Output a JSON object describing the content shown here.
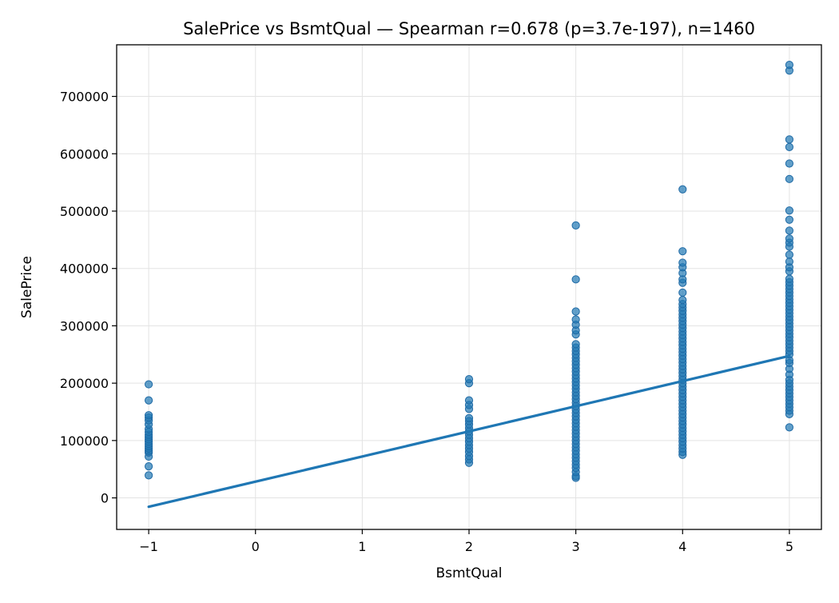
{
  "chart_data": {
    "type": "scatter",
    "title": "SalePrice vs BsmtQual — Spearman r=0.678 (p=3.7e-197), n=1460",
    "xlabel": "BsmtQual",
    "ylabel": "SalePrice",
    "xlim": [
      -1.3,
      5.3
    ],
    "ylim": [
      -55000,
      790000
    ],
    "xticks": [
      -1,
      0,
      1,
      2,
      3,
      4,
      5
    ],
    "xtick_labels": [
      "−1",
      "0",
      "1",
      "2",
      "3",
      "4",
      "5"
    ],
    "yticks": [
      0,
      100000,
      200000,
      300000,
      400000,
      500000,
      600000,
      700000
    ],
    "ytick_labels": [
      "0",
      "100000",
      "200000",
      "300000",
      "400000",
      "500000",
      "600000",
      "700000"
    ],
    "grid": true,
    "colors": {
      "points": "#1f77b4",
      "line": "#1f77b4"
    },
    "point_alpha": 0.7,
    "points": [
      {
        "x": -1,
        "y": 39300
      },
      {
        "x": -1,
        "y": 55000
      },
      {
        "x": -1,
        "y": 72000
      },
      {
        "x": -1,
        "y": 79000
      },
      {
        "x": -1,
        "y": 82000
      },
      {
        "x": -1,
        "y": 86000
      },
      {
        "x": -1,
        "y": 90000
      },
      {
        "x": -1,
        "y": 94000
      },
      {
        "x": -1,
        "y": 98000
      },
      {
        "x": -1,
        "y": 102000
      },
      {
        "x": -1,
        "y": 106000
      },
      {
        "x": -1,
        "y": 110000
      },
      {
        "x": -1,
        "y": 115000
      },
      {
        "x": -1,
        "y": 120000
      },
      {
        "x": -1,
        "y": 128000
      },
      {
        "x": -1,
        "y": 135000
      },
      {
        "x": -1,
        "y": 140000
      },
      {
        "x": -1,
        "y": 144000
      },
      {
        "x": -1,
        "y": 170000
      },
      {
        "x": -1,
        "y": 198000
      },
      {
        "x": 2,
        "y": 61000
      },
      {
        "x": 2,
        "y": 67000
      },
      {
        "x": 2,
        "y": 73000
      },
      {
        "x": 2,
        "y": 80000
      },
      {
        "x": 2,
        "y": 86000
      },
      {
        "x": 2,
        "y": 92000
      },
      {
        "x": 2,
        "y": 98000
      },
      {
        "x": 2,
        "y": 104000
      },
      {
        "x": 2,
        "y": 110000
      },
      {
        "x": 2,
        "y": 116000
      },
      {
        "x": 2,
        "y": 122000
      },
      {
        "x": 2,
        "y": 128000
      },
      {
        "x": 2,
        "y": 134000
      },
      {
        "x": 2,
        "y": 139000
      },
      {
        "x": 2,
        "y": 155000
      },
      {
        "x": 2,
        "y": 162000
      },
      {
        "x": 2,
        "y": 170000
      },
      {
        "x": 2,
        "y": 200000
      },
      {
        "x": 2,
        "y": 207000
      },
      {
        "x": 3,
        "y": 34900
      },
      {
        "x": 3,
        "y": 37900
      },
      {
        "x": 3,
        "y": 45000
      },
      {
        "x": 3,
        "y": 52000
      },
      {
        "x": 3,
        "y": 58000
      },
      {
        "x": 3,
        "y": 64000
      },
      {
        "x": 3,
        "y": 70000
      },
      {
        "x": 3,
        "y": 76000
      },
      {
        "x": 3,
        "y": 82000
      },
      {
        "x": 3,
        "y": 88000
      },
      {
        "x": 3,
        "y": 94000
      },
      {
        "x": 3,
        "y": 100000
      },
      {
        "x": 3,
        "y": 106000
      },
      {
        "x": 3,
        "y": 112000
      },
      {
        "x": 3,
        "y": 118000
      },
      {
        "x": 3,
        "y": 124000
      },
      {
        "x": 3,
        "y": 130000
      },
      {
        "x": 3,
        "y": 136000
      },
      {
        "x": 3,
        "y": 142000
      },
      {
        "x": 3,
        "y": 148000
      },
      {
        "x": 3,
        "y": 154000
      },
      {
        "x": 3,
        "y": 160000
      },
      {
        "x": 3,
        "y": 166000
      },
      {
        "x": 3,
        "y": 172000
      },
      {
        "x": 3,
        "y": 178000
      },
      {
        "x": 3,
        "y": 184000
      },
      {
        "x": 3,
        "y": 190000
      },
      {
        "x": 3,
        "y": 196000
      },
      {
        "x": 3,
        "y": 202000
      },
      {
        "x": 3,
        "y": 208000
      },
      {
        "x": 3,
        "y": 214000
      },
      {
        "x": 3,
        "y": 220000
      },
      {
        "x": 3,
        "y": 226000
      },
      {
        "x": 3,
        "y": 232000
      },
      {
        "x": 3,
        "y": 238000
      },
      {
        "x": 3,
        "y": 244000
      },
      {
        "x": 3,
        "y": 250000
      },
      {
        "x": 3,
        "y": 256000
      },
      {
        "x": 3,
        "y": 262000
      },
      {
        "x": 3,
        "y": 268000
      },
      {
        "x": 3,
        "y": 285000
      },
      {
        "x": 3,
        "y": 292000
      },
      {
        "x": 3,
        "y": 302000
      },
      {
        "x": 3,
        "y": 311000
      },
      {
        "x": 3,
        "y": 325000
      },
      {
        "x": 3,
        "y": 381000
      },
      {
        "x": 3,
        "y": 475000
      },
      {
        "x": 4,
        "y": 75000
      },
      {
        "x": 4,
        "y": 80000
      },
      {
        "x": 4,
        "y": 86000
      },
      {
        "x": 4,
        "y": 92000
      },
      {
        "x": 4,
        "y": 98000
      },
      {
        "x": 4,
        "y": 104000
      },
      {
        "x": 4,
        "y": 110000
      },
      {
        "x": 4,
        "y": 116000
      },
      {
        "x": 4,
        "y": 122000
      },
      {
        "x": 4,
        "y": 128000
      },
      {
        "x": 4,
        "y": 134000
      },
      {
        "x": 4,
        "y": 140000
      },
      {
        "x": 4,
        "y": 146000
      },
      {
        "x": 4,
        "y": 152000
      },
      {
        "x": 4,
        "y": 158000
      },
      {
        "x": 4,
        "y": 164000
      },
      {
        "x": 4,
        "y": 170000
      },
      {
        "x": 4,
        "y": 176000
      },
      {
        "x": 4,
        "y": 182000
      },
      {
        "x": 4,
        "y": 188000
      },
      {
        "x": 4,
        "y": 194000
      },
      {
        "x": 4,
        "y": 200000
      },
      {
        "x": 4,
        "y": 206000
      },
      {
        "x": 4,
        "y": 212000
      },
      {
        "x": 4,
        "y": 218000
      },
      {
        "x": 4,
        "y": 224000
      },
      {
        "x": 4,
        "y": 230000
      },
      {
        "x": 4,
        "y": 236000
      },
      {
        "x": 4,
        "y": 242000
      },
      {
        "x": 4,
        "y": 248000
      },
      {
        "x": 4,
        "y": 254000
      },
      {
        "x": 4,
        "y": 260000
      },
      {
        "x": 4,
        "y": 266000
      },
      {
        "x": 4,
        "y": 272000
      },
      {
        "x": 4,
        "y": 278000
      },
      {
        "x": 4,
        "y": 284000
      },
      {
        "x": 4,
        "y": 290000
      },
      {
        "x": 4,
        "y": 296000
      },
      {
        "x": 4,
        "y": 302000
      },
      {
        "x": 4,
        "y": 308000
      },
      {
        "x": 4,
        "y": 314000
      },
      {
        "x": 4,
        "y": 320000
      },
      {
        "x": 4,
        "y": 326000
      },
      {
        "x": 4,
        "y": 332000
      },
      {
        "x": 4,
        "y": 338000
      },
      {
        "x": 4,
        "y": 345000
      },
      {
        "x": 4,
        "y": 358000
      },
      {
        "x": 4,
        "y": 375000
      },
      {
        "x": 4,
        "y": 381000
      },
      {
        "x": 4,
        "y": 392000
      },
      {
        "x": 4,
        "y": 402000
      },
      {
        "x": 4,
        "y": 410000
      },
      {
        "x": 4,
        "y": 430000
      },
      {
        "x": 4,
        "y": 538000
      },
      {
        "x": 5,
        "y": 123000
      },
      {
        "x": 5,
        "y": 146000
      },
      {
        "x": 5,
        "y": 152000
      },
      {
        "x": 5,
        "y": 158000
      },
      {
        "x": 5,
        "y": 164000
      },
      {
        "x": 5,
        "y": 170000
      },
      {
        "x": 5,
        "y": 176000
      },
      {
        "x": 5,
        "y": 182000
      },
      {
        "x": 5,
        "y": 188000
      },
      {
        "x": 5,
        "y": 194000
      },
      {
        "x": 5,
        "y": 200000
      },
      {
        "x": 5,
        "y": 206000
      },
      {
        "x": 5,
        "y": 215000
      },
      {
        "x": 5,
        "y": 225000
      },
      {
        "x": 5,
        "y": 235000
      },
      {
        "x": 5,
        "y": 240000
      },
      {
        "x": 5,
        "y": 250000
      },
      {
        "x": 5,
        "y": 256000
      },
      {
        "x": 5,
        "y": 262000
      },
      {
        "x": 5,
        "y": 268000
      },
      {
        "x": 5,
        "y": 274000
      },
      {
        "x": 5,
        "y": 280000
      },
      {
        "x": 5,
        "y": 286000
      },
      {
        "x": 5,
        "y": 292000
      },
      {
        "x": 5,
        "y": 298000
      },
      {
        "x": 5,
        "y": 304000
      },
      {
        "x": 5,
        "y": 310000
      },
      {
        "x": 5,
        "y": 316000
      },
      {
        "x": 5,
        "y": 322000
      },
      {
        "x": 5,
        "y": 328000
      },
      {
        "x": 5,
        "y": 334000
      },
      {
        "x": 5,
        "y": 340000
      },
      {
        "x": 5,
        "y": 346000
      },
      {
        "x": 5,
        "y": 352000
      },
      {
        "x": 5,
        "y": 358000
      },
      {
        "x": 5,
        "y": 364000
      },
      {
        "x": 5,
        "y": 370000
      },
      {
        "x": 5,
        "y": 376000
      },
      {
        "x": 5,
        "y": 382000
      },
      {
        "x": 5,
        "y": 395000
      },
      {
        "x": 5,
        "y": 402000
      },
      {
        "x": 5,
        "y": 412000
      },
      {
        "x": 5,
        "y": 424000
      },
      {
        "x": 5,
        "y": 438000
      },
      {
        "x": 5,
        "y": 445000
      },
      {
        "x": 5,
        "y": 452000
      },
      {
        "x": 5,
        "y": 466000
      },
      {
        "x": 5,
        "y": 485000
      },
      {
        "x": 5,
        "y": 501000
      },
      {
        "x": 5,
        "y": 556000
      },
      {
        "x": 5,
        "y": 582900
      },
      {
        "x": 5,
        "y": 611700
      },
      {
        "x": 5,
        "y": 625000
      },
      {
        "x": 5,
        "y": 745000
      },
      {
        "x": 5,
        "y": 755000
      }
    ],
    "fit_line": {
      "x": [
        -1,
        5
      ],
      "y": [
        -15500,
        247500
      ]
    }
  }
}
